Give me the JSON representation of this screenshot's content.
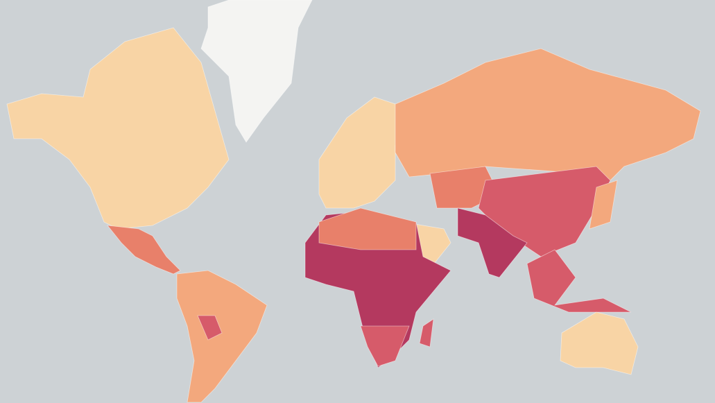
{
  "map": {
    "ocean": "#cdd2d5",
    "palette": [
      "#f8d4a5",
      "#f3a87d",
      "#e8806a",
      "#d65b6a",
      "#b4395f",
      "#f4f4f2"
    ]
  }
}
